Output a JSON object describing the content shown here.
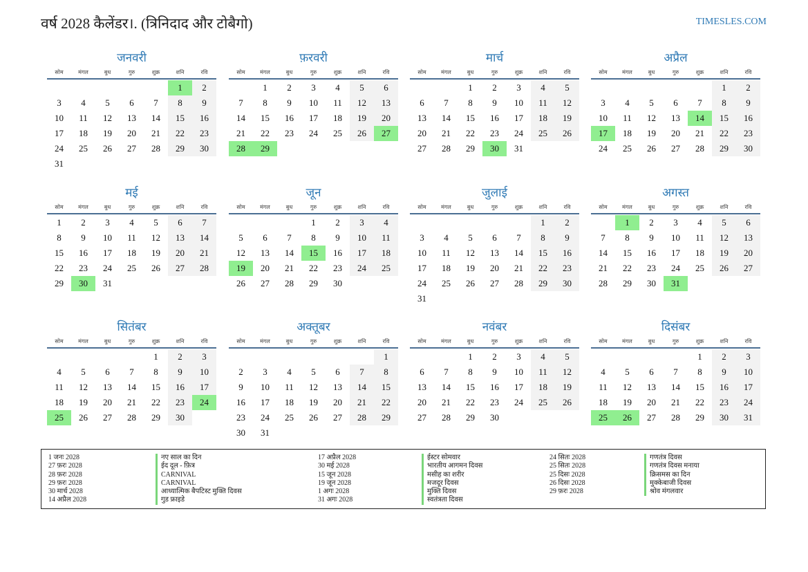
{
  "title": "वर्ष 2028 कैलेंडर।. (त्रिनिदाद और टोबैगो)",
  "site": "TIMESLES.COM",
  "weekdays": [
    "सोम",
    "मंगल",
    "बुध",
    "गुरु",
    "शुक्र",
    "शनि",
    "रवि"
  ],
  "months": [
    {
      "name": "जनवरी",
      "start_offset": 5,
      "days": 31,
      "holidays": [
        1
      ]
    },
    {
      "name": "फ़रवरी",
      "start_offset": 1,
      "days": 29,
      "holidays": [
        27,
        28,
        29
      ]
    },
    {
      "name": "मार्च",
      "start_offset": 2,
      "days": 31,
      "holidays": [
        30
      ]
    },
    {
      "name": "अप्रैल",
      "start_offset": 5,
      "days": 30,
      "holidays": [
        14,
        17
      ]
    },
    {
      "name": "मई",
      "start_offset": 0,
      "days": 31,
      "holidays": [
        30
      ]
    },
    {
      "name": "जून",
      "start_offset": 3,
      "days": 30,
      "holidays": [
        15,
        19
      ]
    },
    {
      "name": "जुलाई",
      "start_offset": 5,
      "days": 31,
      "holidays": []
    },
    {
      "name": "अगस्त",
      "start_offset": 1,
      "days": 31,
      "holidays": [
        1,
        31
      ]
    },
    {
      "name": "सितंबर",
      "start_offset": 4,
      "days": 30,
      "holidays": [
        24,
        25
      ]
    },
    {
      "name": "अक्तूबर",
      "start_offset": 6,
      "days": 31,
      "holidays": []
    },
    {
      "name": "नवंबर",
      "start_offset": 2,
      "days": 30,
      "holidays": []
    },
    {
      "name": "दिसंबर",
      "start_offset": 4,
      "days": 31,
      "holidays": [
        25,
        26
      ]
    }
  ],
  "holiday_columns": [
    {
      "dates": [
        "1 जनः 2028",
        "27 फ़रः 2028",
        "28 फ़रः 2028",
        "29 फ़रः 2028",
        "30 मार्च 2028",
        "14 अप्रैल 2028"
      ],
      "names": [
        "नए साल का दिन",
        "ईद दूल - फ़ित्र",
        "CARNIVAL",
        "CARNIVAL",
        "आध्यात्मिक बैपटिस्ट मुक्ति दिवस",
        "गुड फ्राइडे"
      ]
    },
    {
      "dates": [
        "17 अप्रैल 2028",
        "30 मई 2028",
        "15 जून 2028",
        "19 जून 2028",
        "1 अगः 2028",
        "31 अगः 2028"
      ],
      "names": [
        "ईस्टर सोमवार",
        "भारतीय आगमन दिवस",
        "मसीह का शरीर",
        "मजदूर दिवस",
        "मुक्ति दिवस",
        "स्वतंत्रता दिवस"
      ]
    },
    {
      "dates": [
        "24 सितः 2028",
        "25 सितः 2028",
        "25 दिसः 2028",
        "26 दिसः 2028",
        "29 फ़रः 2028"
      ],
      "names": [
        "गणतंत्र दिवस",
        "गणतंत्र दिवस मनाया",
        "क्रिसमस का दिन",
        "मुक्केबाजी दिवस",
        "श्रोव मंगलवार"
      ]
    }
  ]
}
